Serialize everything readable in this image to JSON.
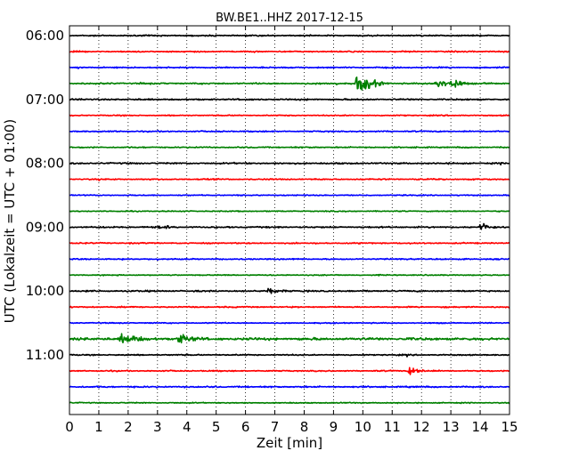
{
  "chart_data": {
    "type": "line",
    "title": "BW.BE1..HHZ 2017-12-15",
    "xlabel": "Zeit  [min]",
    "ylabel": "UTC (Lokalzeit = UTC + 01:00)",
    "xlim": [
      0,
      15
    ],
    "x_ticks": [
      "0",
      "1",
      "2",
      "3",
      "4",
      "5",
      "6",
      "7",
      "8",
      "9",
      "10",
      "11",
      "12",
      "13",
      "14",
      "15"
    ],
    "y_ticks": [
      {
        "label": "06:00",
        "trace_index": 0
      },
      {
        "label": "07:00",
        "trace_index": 4
      },
      {
        "label": "08:00",
        "trace_index": 8
      },
      {
        "label": "09:00",
        "trace_index": 12
      },
      {
        "label": "10:00",
        "trace_index": 16
      },
      {
        "label": "11:00",
        "trace_index": 20
      }
    ],
    "grid": {
      "vertical_dotted": true,
      "horizontal": false
    },
    "colors": [
      "#000000",
      "#ff0000",
      "#0000ff",
      "#008000"
    ],
    "traces": [
      {
        "start": "06:00",
        "color": "#000000",
        "noise": 0.6,
        "events": [
          {
            "t": 6.2,
            "amp": 0.3
          }
        ]
      },
      {
        "start": "06:15",
        "color": "#ff0000",
        "noise": 0.6,
        "events": [
          {
            "t": 4.7,
            "amp": 1.2
          },
          {
            "t": 6.3,
            "amp": 1.3
          },
          {
            "t": 12.2,
            "amp": 1.0
          }
        ]
      },
      {
        "start": "06:30",
        "color": "#0000ff",
        "noise": 0.6,
        "events": [
          {
            "t": 0.3,
            "amp": 1.3
          },
          {
            "t": 7.3,
            "amp": 1.5
          }
        ]
      },
      {
        "start": "06:45",
        "color": "#008000",
        "noise": 0.7,
        "events": [
          {
            "t": 2.4,
            "amp": 1.6
          },
          {
            "t": 9.1,
            "amp": 2.0
          },
          {
            "t": 9.8,
            "amp": 9.5,
            "dur": 0.4
          },
          {
            "t": 10.2,
            "amp": 6.5,
            "dur": 0.3
          },
          {
            "t": 12.5,
            "amp": 5.5,
            "dur": 0.35
          },
          {
            "t": 13.0,
            "amp": 7.0,
            "dur": 0.3
          },
          {
            "t": 13.5,
            "amp": 1.8
          }
        ]
      },
      {
        "start": "07:00",
        "color": "#000000",
        "noise": 0.7,
        "events": [
          {
            "t": 0.5,
            "amp": 1.6
          },
          {
            "t": 1.0,
            "amp": 1.2
          },
          {
            "t": 11.3,
            "amp": 0.8
          }
        ]
      },
      {
        "start": "07:15",
        "color": "#ff0000",
        "noise": 0.5,
        "events": [
          {
            "t": 9.1,
            "amp": 1.4
          },
          {
            "t": 14.9,
            "amp": 1.0
          }
        ]
      },
      {
        "start": "07:30",
        "color": "#0000ff",
        "noise": 0.6,
        "events": [
          {
            "t": 1.7,
            "amp": 1.2
          },
          {
            "t": 12.8,
            "amp": 1.0
          },
          {
            "t": 13.3,
            "amp": 1.0
          }
        ]
      },
      {
        "start": "07:45",
        "color": "#008000",
        "noise": 0.6,
        "events": [
          {
            "t": 14.7,
            "amp": 1.2
          }
        ]
      },
      {
        "start": "08:00",
        "color": "#000000",
        "noise": 0.7,
        "events": [
          {
            "t": 0.2,
            "amp": 1.2
          },
          {
            "t": 2.4,
            "amp": 1.2
          },
          {
            "t": 9.2,
            "amp": 1.3
          },
          {
            "t": 14.7,
            "amp": 1.2
          }
        ]
      },
      {
        "start": "08:15",
        "color": "#ff0000",
        "noise": 0.6,
        "events": [
          {
            "t": 1.0,
            "amp": 1.4
          },
          {
            "t": 2.6,
            "amp": 1.0
          },
          {
            "t": 4.4,
            "amp": 1.2
          },
          {
            "t": 11.8,
            "amp": 1.4
          },
          {
            "t": 14.0,
            "amp": 1.0
          }
        ]
      },
      {
        "start": "08:30",
        "color": "#0000ff",
        "noise": 0.5,
        "events": []
      },
      {
        "start": "08:45",
        "color": "#008000",
        "noise": 0.5,
        "events": [
          {
            "t": 5.8,
            "amp": 1.0
          },
          {
            "t": 8.8,
            "amp": 0.8
          }
        ]
      },
      {
        "start": "09:00",
        "color": "#000000",
        "noise": 0.7,
        "events": [
          {
            "t": 3.0,
            "amp": 4.5,
            "dur": 0.08
          },
          {
            "t": 3.3,
            "amp": 4.0,
            "dur": 0.08
          },
          {
            "t": 14.0,
            "amp": 4.5,
            "dur": 0.35
          }
        ]
      },
      {
        "start": "09:15",
        "color": "#ff0000",
        "noise": 0.6,
        "events": [
          {
            "t": 8.1,
            "amp": 0.8
          },
          {
            "t": 11.6,
            "amp": 1.6
          }
        ]
      },
      {
        "start": "09:30",
        "color": "#0000ff",
        "noise": 0.6,
        "events": [
          {
            "t": 3.0,
            "amp": 1.5
          },
          {
            "t": 7.0,
            "amp": 0.8
          },
          {
            "t": 10.6,
            "amp": 2.0
          }
        ]
      },
      {
        "start": "09:45",
        "color": "#008000",
        "noise": 0.5,
        "events": [
          {
            "t": 1.0,
            "amp": 1.3
          },
          {
            "t": 9.1,
            "amp": 1.0
          },
          {
            "t": 14.4,
            "amp": 1.3
          }
        ]
      },
      {
        "start": "10:00",
        "color": "#000000",
        "noise": 0.7,
        "events": [
          {
            "t": 0.2,
            "amp": 1.2
          },
          {
            "t": 6.8,
            "amp": 2.6,
            "dur": 0.5
          },
          {
            "t": 14.0,
            "amp": 1.0
          },
          {
            "t": 14.4,
            "amp": 1.0
          }
        ]
      },
      {
        "start": "10:15",
        "color": "#ff0000",
        "noise": 0.6,
        "events": [
          {
            "t": 8.7,
            "amp": 1.8
          },
          {
            "t": 12.0,
            "amp": 1.4
          }
        ]
      },
      {
        "start": "10:30",
        "color": "#0000ff",
        "noise": 0.5,
        "events": [
          {
            "t": 6.0,
            "amp": 0.8
          },
          {
            "t": 12.6,
            "amp": 1.0
          }
        ]
      },
      {
        "start": "10:45",
        "color": "#008000",
        "noise": 1.2,
        "events": [
          {
            "t": 1.8,
            "amp": 4.8,
            "dur": 0.7
          },
          {
            "t": 3.7,
            "amp": 4.5,
            "dur": 0.7
          },
          {
            "t": 11.5,
            "amp": 1.0
          },
          {
            "t": 12.2,
            "amp": 1.0
          }
        ]
      },
      {
        "start": "11:00",
        "color": "#000000",
        "noise": 0.6,
        "events": [
          {
            "t": 10.0,
            "amp": 1.6
          },
          {
            "t": 11.5,
            "amp": 1.8
          }
        ]
      },
      {
        "start": "11:15",
        "color": "#ff0000",
        "noise": 0.6,
        "events": [
          {
            "t": 1.3,
            "amp": 1.2
          },
          {
            "t": 11.6,
            "amp": 4.5,
            "dur": 0.35
          }
        ]
      },
      {
        "start": "11:30",
        "color": "#0000ff",
        "noise": 0.7,
        "events": [
          {
            "t": 0.2,
            "amp": 1.2
          },
          {
            "t": 10.5,
            "amp": 1.3
          }
        ]
      },
      {
        "start": "11:45",
        "color": "#008000",
        "noise": 0.5,
        "events": [
          {
            "t": 4.3,
            "amp": 0.8
          },
          {
            "t": 9.7,
            "amp": 1.0
          }
        ]
      }
    ]
  }
}
